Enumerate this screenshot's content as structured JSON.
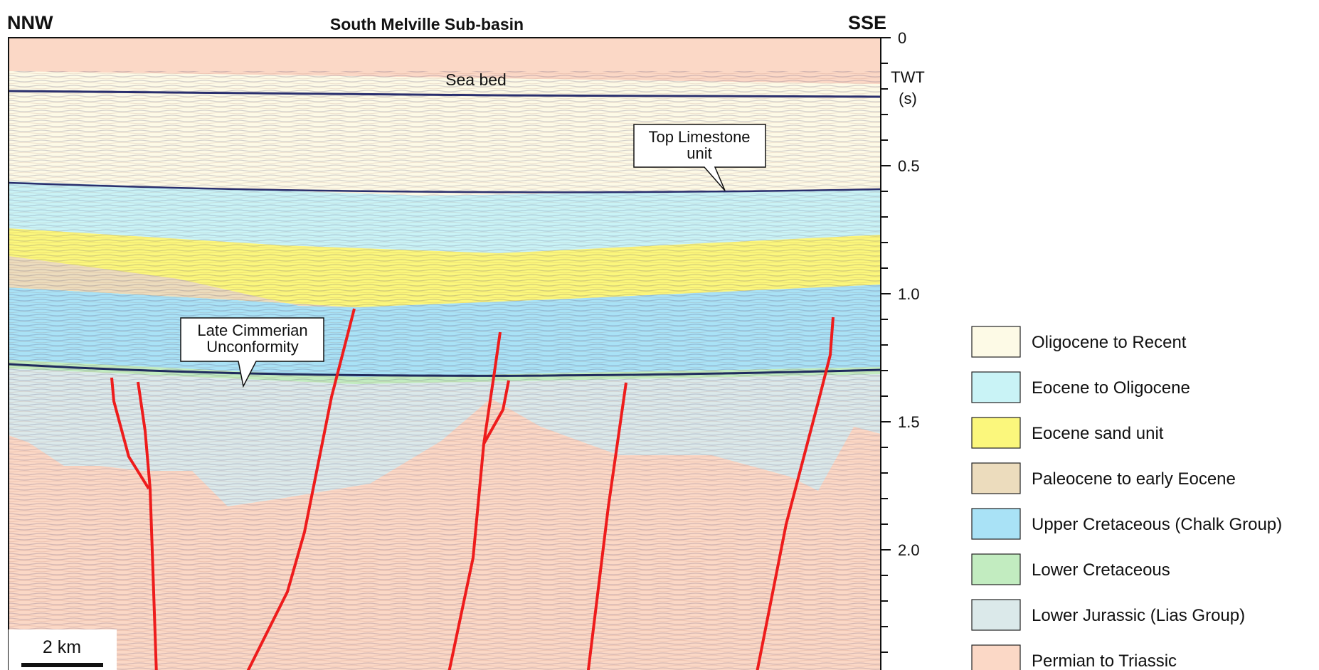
{
  "header": {
    "left": "NNW",
    "title": "South Melville Sub-basin",
    "right": "SSE"
  },
  "axis": {
    "label": "TWT",
    "unit": "(s)",
    "ticks": [
      "0",
      "0.5",
      "1.0",
      "1.5",
      "2.0"
    ]
  },
  "annotations": {
    "sea_bed": "Sea bed",
    "top_limestone": [
      "Top Limestone",
      "unit"
    ],
    "unconformity": [
      "Late Cimmerian",
      "Unconformity"
    ]
  },
  "scale_bar": "2 km",
  "legend": [
    {
      "label": "Oligocene to Recent",
      "color": "#fdfae6"
    },
    {
      "label": "Eocene to Oligocene",
      "color": "#c9f3f6"
    },
    {
      "label": "Eocene sand unit",
      "color": "#fbf77c"
    },
    {
      "label": "Paleocene to early Eocene",
      "color": "#ecdcbd"
    },
    {
      "label": "Upper Cretaceous (Chalk Group)",
      "color": "#a9e2f6"
    },
    {
      "label": "Lower Cretaceous",
      "color": "#c2ecc0"
    },
    {
      "label": "Lower Jurassic (Lias Group)",
      "color": "#dbe9ea"
    },
    {
      "label": "Permian to Triassic",
      "color": "#fbd8c6"
    }
  ]
}
